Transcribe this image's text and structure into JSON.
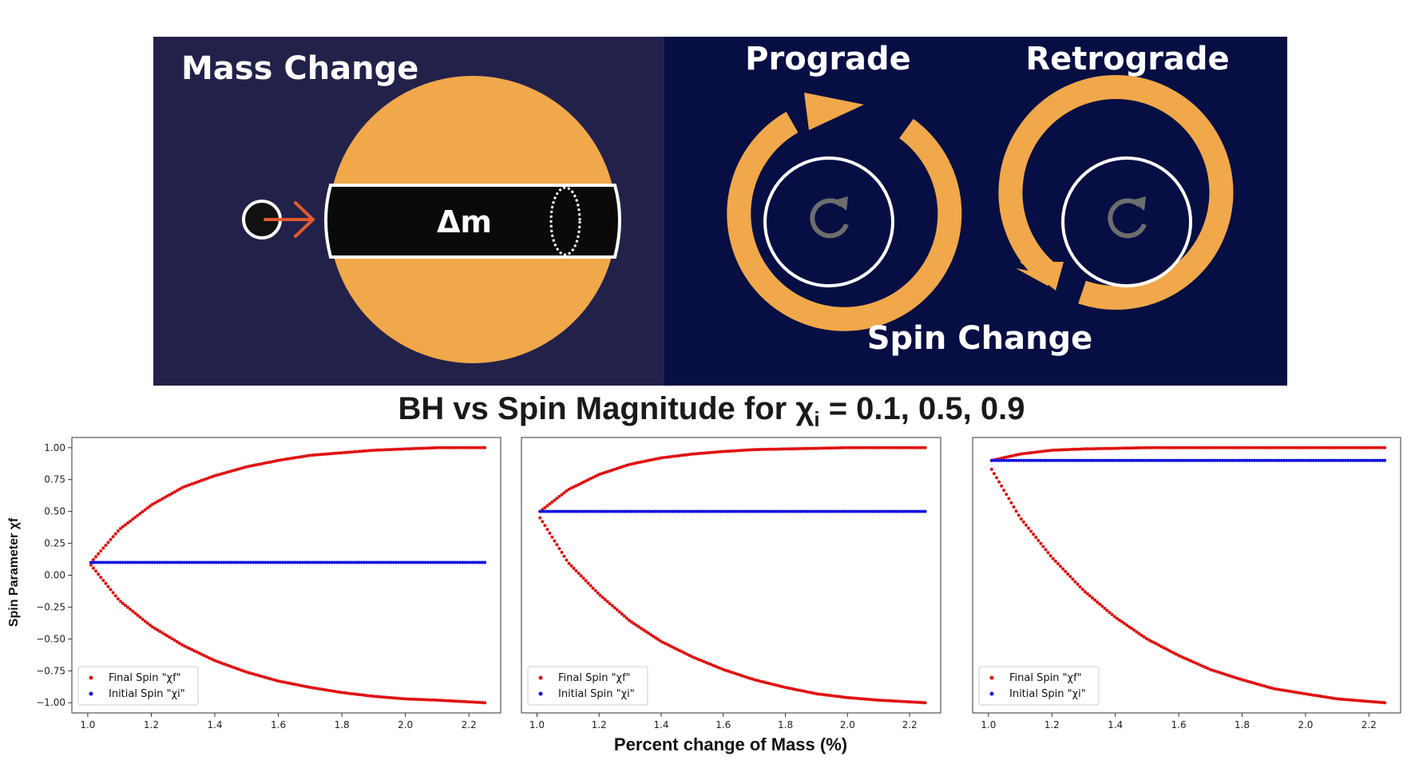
{
  "banner": {
    "mass_change": "Mass Change",
    "delta_m": "Δm",
    "prograde": "Prograde",
    "retrograde": "Retrograde",
    "spin_change": "Spin Change",
    "colors": {
      "left_bg": "#22214a",
      "right_bg": "#060e43",
      "orange": "#f0a84a",
      "arrow": "#e05a2e"
    },
    "icons": [
      "planet-circle",
      "arrow-right-icon",
      "rotate-icon"
    ]
  },
  "title": {
    "main": "BH vs Spin Magnitude for χ",
    "sub": "i",
    "rest": " = 0.1, 0.5, 0.9"
  },
  "xlabel": "Percent change of Mass (%)",
  "ylabel": "Spin Parameter χf",
  "legend": {
    "final": "Final Spin \"χf\"",
    "initial": "Initial Spin \"χi\""
  },
  "colors": {
    "final": "#e01010",
    "initial": "#1010e0"
  },
  "chart_data": [
    {
      "type": "scatter",
      "xlim": [
        0.95,
        2.3
      ],
      "ylim": [
        -1.08,
        1.08
      ],
      "xticks": [
        1.0,
        1.2,
        1.4,
        1.6,
        1.8,
        2.0,
        2.2
      ],
      "yticks": [
        1.0,
        0.75,
        0.5,
        0.25,
        0.0,
        -0.25,
        -0.5,
        -0.75,
        -1.0
      ],
      "ytick_labels": [
        "1.00",
        "0.75",
        "0.50",
        "0.25",
        "0.00",
        "−0.25",
        "−0.50",
        "−0.75",
        "−1.00"
      ],
      "show_ylabel": true,
      "legend_position": "lower-left",
      "initial_spin": 0.1,
      "series": [
        {
          "name": "Final Spin \"χf\" (prograde)",
          "x": [
            1.01,
            1.1,
            1.2,
            1.3,
            1.4,
            1.5,
            1.6,
            1.7,
            1.8,
            1.9,
            2.0,
            2.1,
            2.25
          ],
          "y": [
            0.1,
            0.36,
            0.55,
            0.69,
            0.78,
            0.85,
            0.9,
            0.94,
            0.96,
            0.98,
            0.99,
            1.0,
            1.0
          ]
        },
        {
          "name": "Final Spin \"χf\" (retrograde)",
          "x": [
            1.01,
            1.1,
            1.2,
            1.3,
            1.4,
            1.5,
            1.6,
            1.7,
            1.8,
            1.9,
            2.0,
            2.1,
            2.25
          ],
          "y": [
            0.08,
            -0.2,
            -0.4,
            -0.55,
            -0.67,
            -0.76,
            -0.83,
            -0.88,
            -0.92,
            -0.95,
            -0.97,
            -0.98,
            -1.0
          ]
        },
        {
          "name": "Initial Spin \"χi\"",
          "x": [
            1.01,
            2.25
          ],
          "y": [
            0.1,
            0.1
          ]
        }
      ]
    },
    {
      "type": "scatter",
      "xlim": [
        0.95,
        2.3
      ],
      "ylim": [
        -1.08,
        1.08
      ],
      "xticks": [
        1.0,
        1.2,
        1.4,
        1.6,
        1.8,
        2.0,
        2.2
      ],
      "yticks": [],
      "ytick_labels": [],
      "show_ylabel": false,
      "legend_position": "lower-left",
      "initial_spin": 0.5,
      "series": [
        {
          "name": "Final Spin \"χf\" (prograde)",
          "x": [
            1.01,
            1.1,
            1.2,
            1.3,
            1.4,
            1.5,
            1.6,
            1.7,
            1.8,
            1.9,
            2.0,
            2.1,
            2.25
          ],
          "y": [
            0.5,
            0.67,
            0.79,
            0.87,
            0.92,
            0.95,
            0.97,
            0.985,
            0.99,
            0.995,
            1.0,
            1.0,
            1.0
          ]
        },
        {
          "name": "Final Spin \"χf\" (retrograde)",
          "x": [
            1.01,
            1.1,
            1.2,
            1.3,
            1.4,
            1.5,
            1.6,
            1.7,
            1.8,
            1.9,
            2.0,
            2.1,
            2.25
          ],
          "y": [
            0.45,
            0.1,
            -0.15,
            -0.36,
            -0.52,
            -0.64,
            -0.74,
            -0.82,
            -0.88,
            -0.93,
            -0.96,
            -0.98,
            -1.0
          ]
        },
        {
          "name": "Initial Spin \"χi\"",
          "x": [
            1.01,
            2.25
          ],
          "y": [
            0.5,
            0.5
          ]
        }
      ]
    },
    {
      "type": "scatter",
      "xlim": [
        0.95,
        2.3
      ],
      "ylim": [
        -1.08,
        1.08
      ],
      "xticks": [
        1.0,
        1.2,
        1.4,
        1.6,
        1.8,
        2.0,
        2.2
      ],
      "yticks": [],
      "ytick_labels": [],
      "show_ylabel": false,
      "legend_position": "lower-left",
      "initial_spin": 0.9,
      "series": [
        {
          "name": "Final Spin \"χf\" (prograde)",
          "x": [
            1.01,
            1.1,
            1.2,
            1.3,
            1.4,
            1.5,
            1.6,
            1.8,
            2.0,
            2.25
          ],
          "y": [
            0.9,
            0.95,
            0.98,
            0.99,
            0.995,
            1.0,
            1.0,
            1.0,
            1.0,
            1.0
          ]
        },
        {
          "name": "Final Spin \"χf\" (retrograde)",
          "x": [
            1.01,
            1.1,
            1.2,
            1.3,
            1.4,
            1.5,
            1.6,
            1.7,
            1.8,
            1.9,
            2.0,
            2.1,
            2.25
          ],
          "y": [
            0.83,
            0.45,
            0.14,
            -0.12,
            -0.33,
            -0.5,
            -0.63,
            -0.74,
            -0.82,
            -0.89,
            -0.93,
            -0.97,
            -1.0
          ]
        },
        {
          "name": "Initial Spin \"χi\"",
          "x": [
            1.01,
            2.25
          ],
          "y": [
            0.9,
            0.9
          ]
        }
      ]
    }
  ]
}
